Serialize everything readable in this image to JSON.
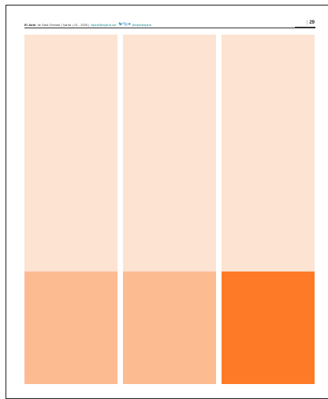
{
  "header": {
    "publication": "El Jardí",
    "location": "de Sant Gervasi | Sarrià",
    "issue": "| 01 - 2020 |",
    "email": "eljardi@eljardi.cat",
    "social_handle": "@eljardiejardi"
  },
  "page_number": "29",
  "colors": {
    "light_peach": "#fde3d2",
    "medium_peach": "#fdbb91",
    "orange": "#ff7a26"
  },
  "columns": [
    {
      "top_color": "#fde3d2",
      "bottom_color": "#fdbb91"
    },
    {
      "top_color": "#fde3d2",
      "bottom_color": "#fdbb91"
    },
    {
      "top_color": "#fde3d2",
      "bottom_color": "#ff7a26"
    }
  ]
}
